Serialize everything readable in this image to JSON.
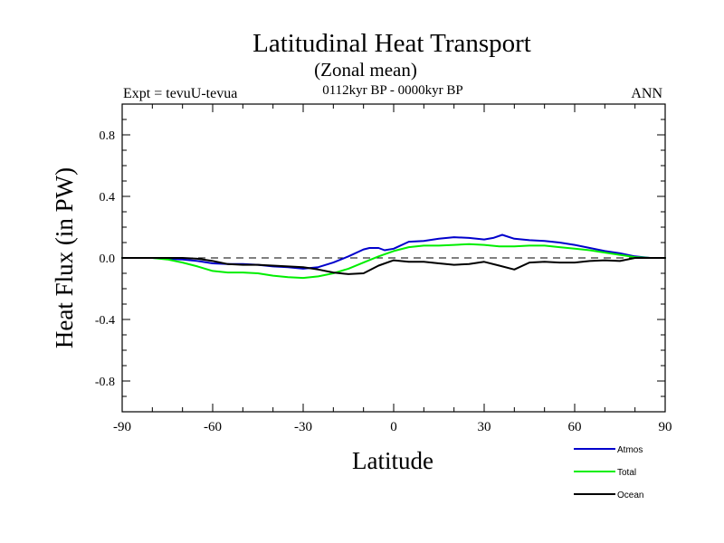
{
  "header": {
    "title": "Latitudinal Heat Transport",
    "subtitle": "(Zonal mean)",
    "left_label": "Expt = tevuU-tevua",
    "center_label": "0112kyr BP - 0000kyr BP",
    "right_label": "ANN"
  },
  "chart_data": {
    "type": "line",
    "xlabel": "Latitude",
    "ylabel": "Heat Flux (in PW)",
    "xlim": [
      -90,
      90
    ],
    "ylim": [
      -1.0,
      1.0
    ],
    "xticks": [
      -90,
      -60,
      -30,
      0,
      30,
      60,
      90
    ],
    "xtick_labels": [
      "-90",
      "-60",
      "-30",
      "0",
      "30",
      "60",
      "90"
    ],
    "yticks": [
      -0.8,
      -0.4,
      0.0,
      0.4,
      0.8
    ],
    "ytick_labels": [
      "-0.8",
      "-0.4",
      "0.0",
      "0.4",
      "0.8"
    ],
    "zero_line": {
      "y": 0.0,
      "style": "dashed"
    },
    "grid": false,
    "legend_position": "bottom-right",
    "series": [
      {
        "name": "Atmos",
        "color": "#0000cc",
        "x": [
          -90,
          -80,
          -75,
          -70,
          -65,
          -60,
          -55,
          -50,
          -45,
          -40,
          -35,
          -30,
          -25,
          -20,
          -15,
          -10,
          -8,
          -5,
          -3,
          0,
          5,
          10,
          15,
          20,
          25,
          30,
          33,
          36,
          40,
          45,
          50,
          55,
          60,
          65,
          70,
          75,
          80,
          85,
          90
        ],
        "values": [
          0.0,
          0.0,
          -0.005,
          -0.01,
          -0.02,
          -0.035,
          -0.04,
          -0.04,
          -0.045,
          -0.055,
          -0.06,
          -0.07,
          -0.06,
          -0.03,
          0.01,
          0.055,
          0.065,
          0.065,
          0.05,
          0.06,
          0.105,
          0.11,
          0.125,
          0.135,
          0.13,
          0.12,
          0.13,
          0.15,
          0.125,
          0.115,
          0.11,
          0.1,
          0.085,
          0.065,
          0.045,
          0.03,
          0.01,
          0.0,
          0.0
        ]
      },
      {
        "name": "Total",
        "color": "#00ee00",
        "x": [
          -90,
          -80,
          -75,
          -70,
          -65,
          -60,
          -55,
          -50,
          -45,
          -40,
          -35,
          -30,
          -25,
          -20,
          -15,
          -10,
          -5,
          0,
          5,
          10,
          15,
          20,
          25,
          30,
          35,
          40,
          45,
          50,
          55,
          60,
          65,
          70,
          75,
          80,
          85,
          90
        ],
        "values": [
          0.0,
          0.0,
          -0.01,
          -0.03,
          -0.055,
          -0.085,
          -0.095,
          -0.095,
          -0.1,
          -0.115,
          -0.125,
          -0.13,
          -0.12,
          -0.1,
          -0.07,
          -0.03,
          0.01,
          0.045,
          0.07,
          0.08,
          0.08,
          0.085,
          0.09,
          0.085,
          0.075,
          0.075,
          0.08,
          0.08,
          0.07,
          0.06,
          0.05,
          0.035,
          0.02,
          0.005,
          0.0,
          0.0
        ]
      },
      {
        "name": "Ocean",
        "color": "#000000",
        "x": [
          -90,
          -80,
          -75,
          -70,
          -65,
          -60,
          -55,
          -50,
          -45,
          -40,
          -35,
          -30,
          -25,
          -20,
          -15,
          -10,
          -5,
          0,
          5,
          10,
          15,
          20,
          25,
          30,
          35,
          40,
          45,
          50,
          55,
          60,
          65,
          70,
          75,
          80,
          85,
          90
        ],
        "values": [
          0.0,
          0.0,
          0.0,
          0.0,
          -0.005,
          -0.02,
          -0.04,
          -0.045,
          -0.045,
          -0.05,
          -0.055,
          -0.06,
          -0.075,
          -0.095,
          -0.105,
          -0.1,
          -0.05,
          -0.015,
          -0.025,
          -0.025,
          -0.035,
          -0.045,
          -0.04,
          -0.025,
          -0.05,
          -0.075,
          -0.03,
          -0.025,
          -0.03,
          -0.03,
          -0.02,
          -0.015,
          -0.02,
          0.0,
          0.0,
          0.0
        ]
      }
    ]
  }
}
